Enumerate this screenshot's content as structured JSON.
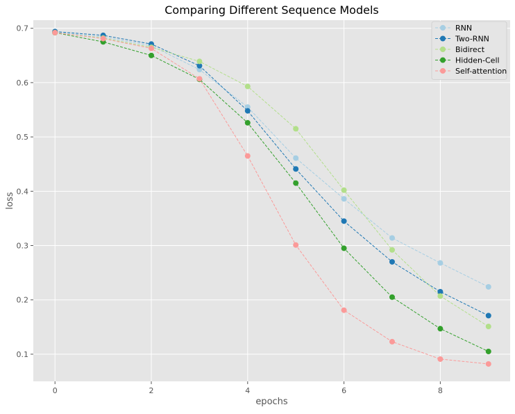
{
  "chart_data": {
    "type": "line",
    "title": "Comparing Different Sequence Models",
    "xlabel": "epochs",
    "ylabel": "loss",
    "xlim": [
      -0.45,
      9.45
    ],
    "ylim": [
      0.05,
      0.715
    ],
    "x_ticks": [
      0,
      2,
      4,
      6,
      8
    ],
    "y_ticks": [
      0.1,
      0.2,
      0.3,
      0.4,
      0.5,
      0.6,
      0.7
    ],
    "x_tick_labels": [
      "0",
      "2",
      "4",
      "6",
      "8"
    ],
    "y_tick_labels": [
      "0.1",
      "0.2",
      "0.3",
      "0.4",
      "0.5",
      "0.6",
      "0.7"
    ],
    "grid": true,
    "legend_position": "top-right",
    "x": [
      0,
      1,
      2,
      3,
      4,
      5,
      6,
      7,
      8,
      9
    ],
    "series": [
      {
        "name": "RNN",
        "color": "#a6cee3",
        "values": [
          0.693,
          0.684,
          0.668,
          0.624,
          0.555,
          0.461,
          0.386,
          0.314,
          0.268,
          0.224
        ]
      },
      {
        "name": "Two-RNN",
        "color": "#1f78b4",
        "values": [
          0.694,
          0.687,
          0.671,
          0.631,
          0.548,
          0.441,
          0.345,
          0.27,
          0.215,
          0.171
        ]
      },
      {
        "name": "Bidirect",
        "color": "#b2df8a",
        "values": [
          0.692,
          0.682,
          0.665,
          0.639,
          0.593,
          0.515,
          0.402,
          0.292,
          0.207,
          0.151
        ]
      },
      {
        "name": "Hidden-Cell",
        "color": "#33a02c",
        "values": [
          0.692,
          0.675,
          0.65,
          0.606,
          0.526,
          0.415,
          0.295,
          0.205,
          0.147,
          0.105
        ]
      },
      {
        "name": "Self-attention",
        "color": "#fb9a99",
        "values": [
          0.692,
          0.681,
          0.663,
          0.607,
          0.465,
          0.301,
          0.181,
          0.123,
          0.091,
          0.082
        ]
      }
    ]
  }
}
